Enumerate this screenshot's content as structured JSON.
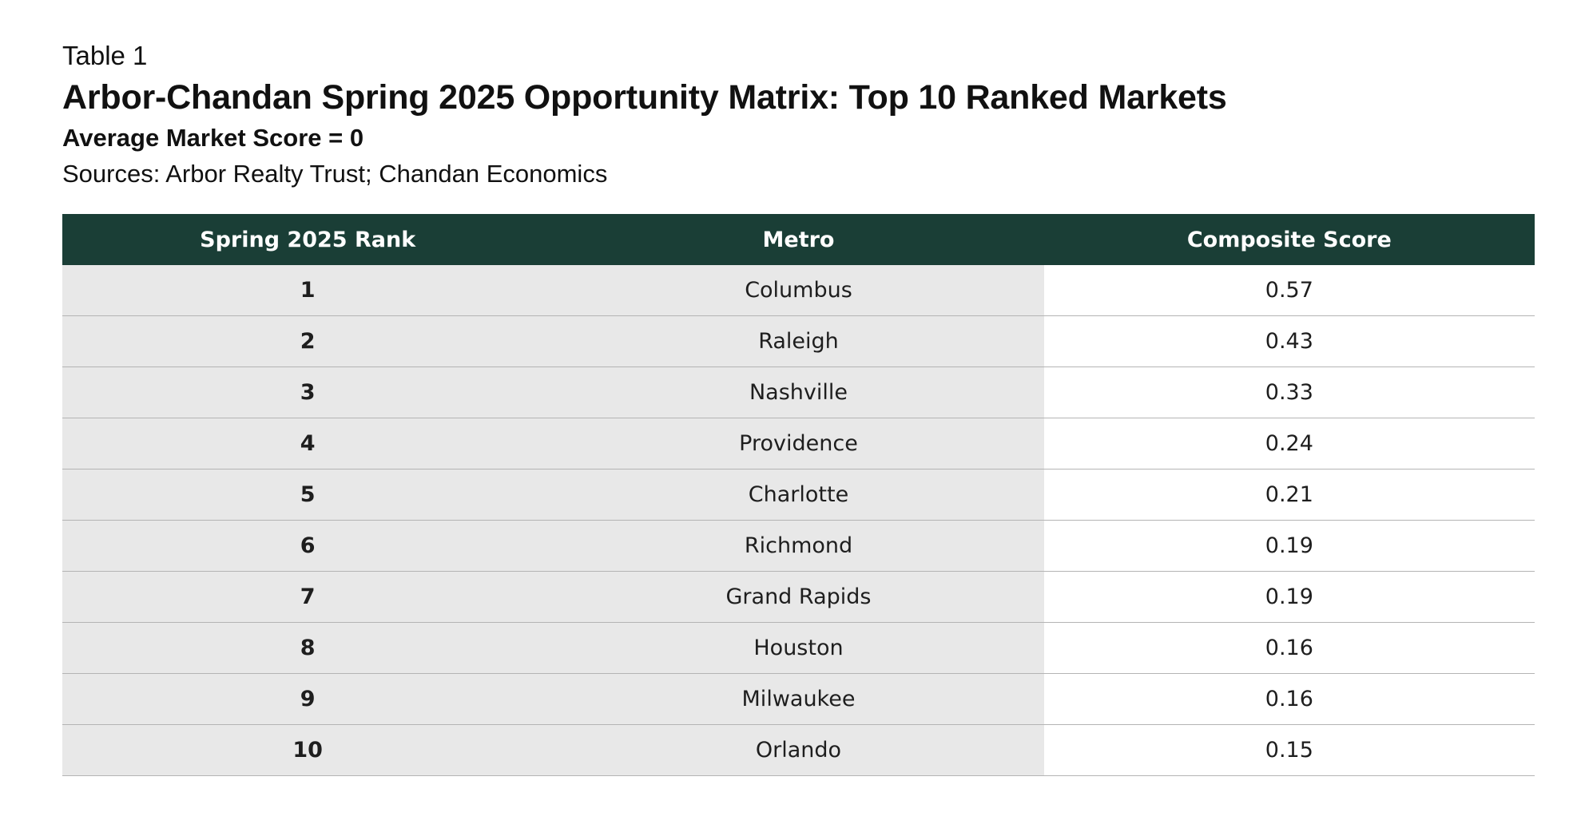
{
  "header": {
    "label": "Table 1",
    "title": "Arbor-Chandan Spring 2025 Opportunity Matrix: Top 10 Ranked Markets",
    "subtitle": "Average Market Score = 0",
    "sources": "Sources: Arbor Realty Trust; Chandan Economics"
  },
  "table": {
    "columns": [
      "Spring 2025 Rank",
      "Metro",
      "Composite Score"
    ],
    "rows": [
      {
        "rank": "1",
        "metro": "Columbus",
        "score": "0.57"
      },
      {
        "rank": "2",
        "metro": "Raleigh",
        "score": "0.43"
      },
      {
        "rank": "3",
        "metro": "Nashville",
        "score": "0.33"
      },
      {
        "rank": "4",
        "metro": "Providence",
        "score": "0.24"
      },
      {
        "rank": "5",
        "metro": "Charlotte",
        "score": "0.21"
      },
      {
        "rank": "6",
        "metro": "Richmond",
        "score": "0.19"
      },
      {
        "rank": "7",
        "metro": "Grand Rapids",
        "score": "0.19"
      },
      {
        "rank": "8",
        "metro": "Houston",
        "score": "0.16"
      },
      {
        "rank": "9",
        "metro": "Milwaukee",
        "score": "0.16"
      },
      {
        "rank": "10",
        "metro": "Orlando",
        "score": "0.15"
      }
    ]
  },
  "colors": {
    "header_bg": "#1a3e36",
    "shaded_cell_bg": "#e8e8e8",
    "row_divider": "#b4b4b4"
  }
}
